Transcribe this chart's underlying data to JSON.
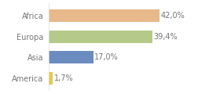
{
  "categories": [
    "Africa",
    "Europa",
    "Asia",
    "America"
  ],
  "values": [
    42.0,
    39.4,
    17.0,
    1.7
  ],
  "bar_colors": [
    "#e8b98a",
    "#b5c98a",
    "#6b8cbf",
    "#e8c84a"
  ],
  "labels": [
    "42,0%",
    "39,4%",
    "17,0%",
    "1,7%"
  ],
  "background_color": "#ffffff",
  "xlim": [
    0,
    55
  ],
  "label_fontsize": 7,
  "category_fontsize": 7,
  "bar_height": 0.6,
  "text_color": "#777777"
}
